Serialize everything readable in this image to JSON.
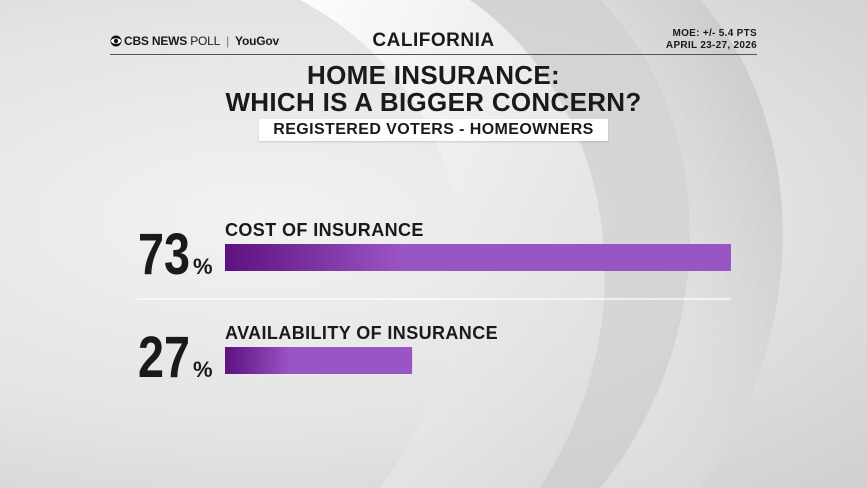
{
  "header": {
    "brand_cbs": "CBS NEWS",
    "brand_poll": "POLL",
    "brand_sep": "|",
    "brand_yougov": "YouGov",
    "state": "CALIFORNIA",
    "moe": "MOE: +/- 5.4 PTS",
    "dates": "APRIL 23-27, 2026"
  },
  "colors": {
    "bar_start": "#5e1180",
    "bar_end": "#9a55c4",
    "text": "#1a1a1a"
  },
  "chart_data": {
    "type": "bar",
    "orientation": "horizontal",
    "title_line1": "HOME INSURANCE:",
    "title_line2": "WHICH IS A BIGGER CONCERN?",
    "subtitle": "REGISTERED VOTERS - HOMEOWNERS",
    "categories": [
      "COST OF INSURANCE",
      "AVAILABILITY OF INSURANCE"
    ],
    "values": [
      73,
      27
    ],
    "unit": "%",
    "xlim": [
      0,
      73
    ]
  }
}
